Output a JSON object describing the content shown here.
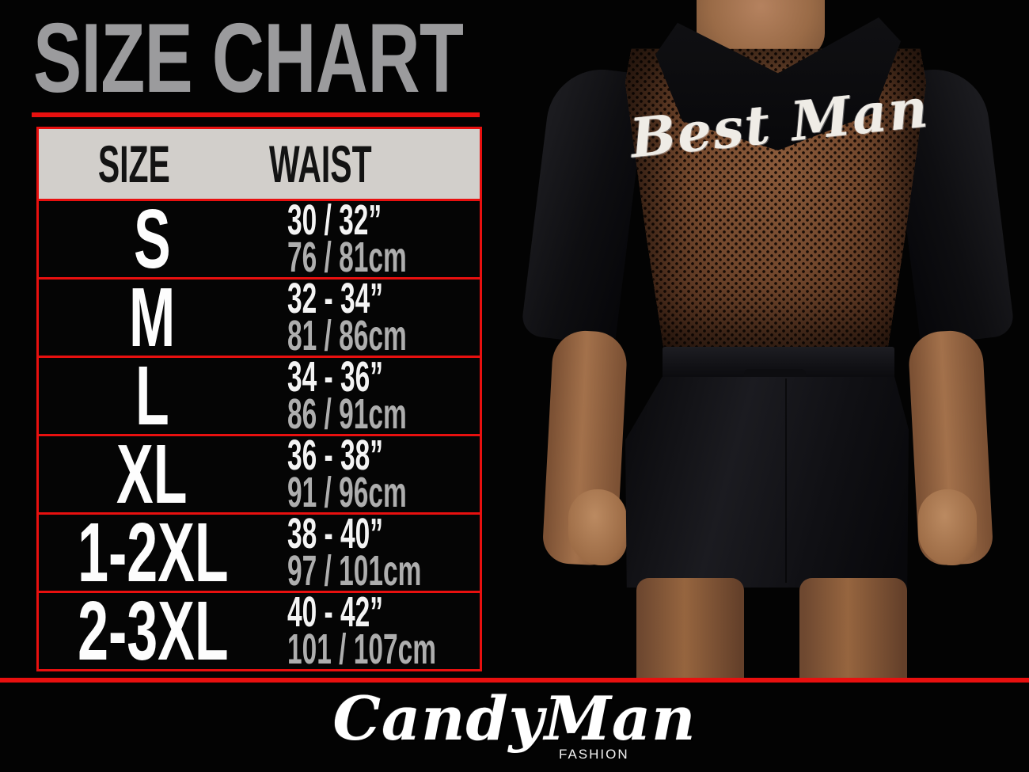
{
  "title": "SIZE CHART",
  "table": {
    "headers": {
      "size": "SIZE",
      "waist": "WAIST"
    },
    "rows": [
      {
        "size": "S",
        "waist_in": "30 / 32”",
        "waist_cm": "76 / 81cm"
      },
      {
        "size": "M",
        "waist_in": "32 - 34”",
        "waist_cm": "81 / 86cm"
      },
      {
        "size": "L",
        "waist_in": "34 - 36”",
        "waist_cm": "86 / 91cm"
      },
      {
        "size": "XL",
        "waist_in": "36 - 38”",
        "waist_cm": "91 / 96cm"
      },
      {
        "size": "1-2XL",
        "waist_in": "38 - 40”",
        "waist_cm": "97 / 101cm"
      },
      {
        "size": "2-3XL",
        "waist_in": "40 - 42”",
        "waist_cm": "101 / 107cm"
      }
    ]
  },
  "photo": {
    "garment_text": "Best Man"
  },
  "footer": {
    "brand": "CandyMan",
    "brand_sub": "FASHION"
  },
  "colors": {
    "background": "#030303",
    "accent_red": "#e8100f",
    "title_gray": "#9b9b9d",
    "header_bg": "#d2cfcb",
    "size_text": "#fdfdfd",
    "inches_text": "#f4f4f4",
    "cm_text": "#aeaeae",
    "mesh_brown": "#6e4329"
  }
}
